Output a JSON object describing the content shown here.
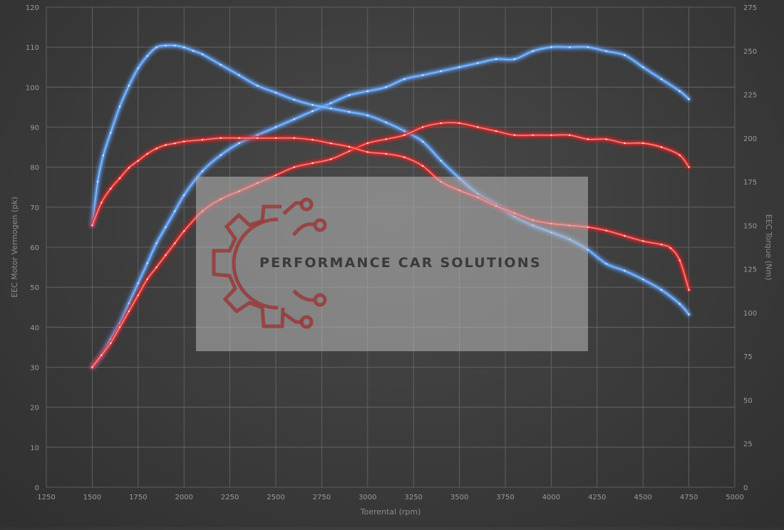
{
  "chart_data": {
    "type": "line",
    "xlabel": "Toerental (rpm)",
    "ylabel_left": "EEC Motor Vermogen (pk)",
    "ylabel_right": "EEC Torque (Nm)",
    "xlim": [
      1250,
      5000
    ],
    "ylim_left": [
      0,
      120
    ],
    "ylim_right": [
      0,
      275
    ],
    "x_ticks": [
      "1250",
      "1500",
      "1750",
      "2000",
      "2250",
      "2500",
      "2750",
      "3000",
      "3250",
      "3500",
      "3750",
      "4000",
      "4250",
      "4500",
      "4750",
      "5000"
    ],
    "y_left_ticks": [
      "0",
      "10",
      "20",
      "30",
      "40",
      "50",
      "60",
      "70",
      "80",
      "90",
      "100",
      "110",
      "120"
    ],
    "y_right_ticks": [
      "0",
      "25",
      "50",
      "75",
      "100",
      "125",
      "150",
      "175",
      "200",
      "225",
      "250",
      "275"
    ],
    "grid": true,
    "series": [
      {
        "color": "#5b9bf0",
        "axis": "left",
        "x": [
          1500,
          1550,
          1600,
          1650,
          1700,
          1750,
          1800,
          1850,
          1900,
          1950,
          2000,
          2100,
          2200,
          2300,
          2400,
          2500,
          2600,
          2700,
          2800,
          2900,
          3000,
          3100,
          3200,
          3300,
          3400,
          3500,
          3600,
          3700,
          3800,
          3900,
          4000,
          4100,
          4200,
          4300,
          4400,
          4500,
          4600,
          4700,
          4750
        ],
        "y": [
          30,
          33,
          37,
          41,
          46,
          51,
          56,
          61,
          65,
          69,
          73,
          79,
          83,
          86,
          88,
          90,
          92,
          94,
          96,
          98,
          99,
          100,
          102,
          103,
          104,
          105,
          106,
          107,
          107,
          109,
          110,
          110,
          110,
          109,
          108,
          105,
          102,
          99,
          97
        ]
      },
      {
        "color": "#5b9bf0",
        "axis": "right",
        "x": [
          1500,
          1530,
          1560,
          1600,
          1650,
          1700,
          1750,
          1800,
          1850,
          1900,
          1950,
          2000,
          2050,
          2100,
          2200,
          2300,
          2400,
          2500,
          2600,
          2700,
          2800,
          2900,
          3000,
          3100,
          3200,
          3300,
          3400,
          3500,
          3600,
          3700,
          3800,
          3900,
          4000,
          4100,
          4200,
          4300,
          4400,
          4500,
          4600,
          4700,
          4750
        ],
        "y": [
          150,
          175,
          190,
          203,
          218,
          230,
          240,
          247,
          252,
          253,
          253,
          252,
          250,
          248,
          242,
          236,
          230,
          226,
          222,
          219,
          217,
          215,
          213,
          209,
          204,
          198,
          187,
          177,
          168,
          162,
          155,
          150,
          146,
          142,
          136,
          128,
          124,
          119,
          113,
          105,
          99
        ]
      },
      {
        "color": "#e02a2a",
        "axis": "left",
        "x": [
          1500,
          1550,
          1600,
          1650,
          1700,
          1750,
          1800,
          1850,
          1900,
          1950,
          2000,
          2100,
          2200,
          2300,
          2400,
          2500,
          2600,
          2700,
          2800,
          2900,
          3000,
          3100,
          3200,
          3300,
          3400,
          3500,
          3600,
          3700,
          3800,
          3900,
          4000,
          4100,
          4200,
          4300,
          4400,
          4500,
          4600,
          4700,
          4750
        ],
        "y": [
          30,
          33,
          36,
          40,
          44,
          48,
          52,
          55,
          58,
          61,
          64,
          69,
          72,
          74,
          76,
          78,
          80,
          81,
          82,
          84,
          86,
          87,
          88,
          90,
          91,
          91,
          90,
          89,
          88,
          88,
          88,
          88,
          87,
          87,
          86,
          86,
          85,
          83,
          80
        ]
      },
      {
        "color": "#e02a2a",
        "axis": "right",
        "x": [
          1500,
          1550,
          1600,
          1650,
          1700,
          1750,
          1800,
          1850,
          1900,
          1950,
          2000,
          2100,
          2200,
          2300,
          2400,
          2500,
          2600,
          2700,
          2800,
          2900,
          3000,
          3100,
          3200,
          3300,
          3400,
          3500,
          3600,
          3700,
          3800,
          3900,
          4000,
          4100,
          4200,
          4300,
          4400,
          4500,
          4600,
          4650,
          4700,
          4750
        ],
        "y": [
          150,
          163,
          171,
          177,
          183,
          187,
          191,
          194,
          196,
          197,
          198,
          199,
          200,
          200,
          200,
          200,
          200,
          199,
          197,
          195,
          192,
          191,
          189,
          184,
          175,
          170,
          166,
          161,
          157,
          153,
          151,
          150,
          149,
          147,
          144,
          141,
          139,
          137,
          130,
          113
        ]
      }
    ]
  },
  "watermark": {
    "text": "PERFORMANCE CAR SOLUTIONS"
  }
}
